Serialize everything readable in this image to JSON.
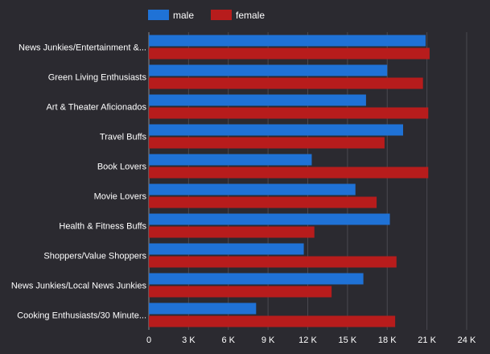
{
  "chart_data": {
    "type": "bar",
    "orientation": "horizontal",
    "categories": [
      "News Junkies/Entertainment &...",
      "Green Living Enthusiasts",
      "Art & Theater Aficionados",
      "Travel Buffs",
      "Book Lovers",
      "Movie Lovers",
      "Health & Fitness Buffs",
      "Shoppers/Value Shoppers",
      "News Junkies/Local News Junkies",
      "Cooking Enthusiasts/30 Minute..."
    ],
    "series": [
      {
        "name": "male",
        "color": "#1f72d6",
        "values": [
          20900,
          18000,
          16400,
          19200,
          12300,
          15600,
          18200,
          11700,
          16200,
          8100
        ]
      },
      {
        "name": "female",
        "color": "#b71c1c",
        "values": [
          21200,
          20700,
          21100,
          17800,
          21100,
          17200,
          12500,
          18700,
          13800,
          18600
        ]
      }
    ],
    "xlim": [
      0,
      24000
    ],
    "ticks": [
      0,
      3000,
      6000,
      9000,
      12000,
      15000,
      18000,
      21000,
      24000
    ],
    "tick_labels": [
      "0",
      "3 K",
      "6 K",
      "9 K",
      "12 K",
      "15 K",
      "18 K",
      "21 K",
      "24 K"
    ],
    "legend_position": "top-left",
    "grid": true
  }
}
